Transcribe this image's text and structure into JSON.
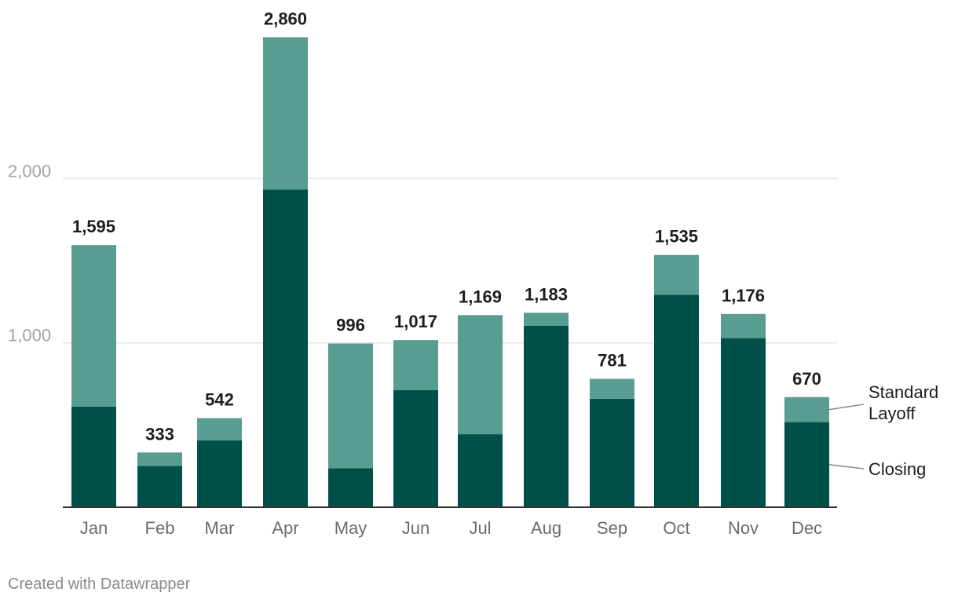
{
  "chart_data": {
    "type": "bar",
    "stacked": true,
    "title": "",
    "xlabel": "",
    "ylabel": "",
    "ylim": [
      0,
      2860
    ],
    "yticks": [
      {
        "value": 1000,
        "label": "1,000"
      },
      {
        "value": 2000,
        "label": "2,000"
      }
    ],
    "grid": true,
    "categories": [
      "Jan",
      "Feb",
      "Mar",
      "Apr",
      "May",
      "Jun",
      "Jul",
      "Aug",
      "Sep",
      "Oct",
      "Nov",
      "Dec"
    ],
    "totals": [
      1595,
      333,
      542,
      2860,
      996,
      1017,
      1169,
      1183,
      781,
      1535,
      1176,
      670
    ],
    "total_labels": [
      "1,595",
      "333",
      "542",
      "2,860",
      "996",
      "1,017",
      "1,169",
      "1,183",
      "781",
      "1,535",
      "1,176",
      "670"
    ],
    "series": [
      {
        "name": "Closing",
        "legend_label": "Closing",
        "color": "#00504a",
        "values": [
          612,
          252,
          407,
          1933,
          237,
          712,
          444,
          1105,
          660,
          1292,
          1029,
          518
        ]
      },
      {
        "name": "Standard Layoff",
        "legend_label": [
          "Standard",
          "Layoff"
        ],
        "color": "#589c92",
        "values": [
          983,
          81,
          135,
          927,
          759,
          305,
          725,
          78,
          121,
          243,
          147,
          152
        ]
      }
    ],
    "legend_position": "right, inline labels"
  },
  "footer": {
    "credit": "Created with Datawrapper"
  }
}
